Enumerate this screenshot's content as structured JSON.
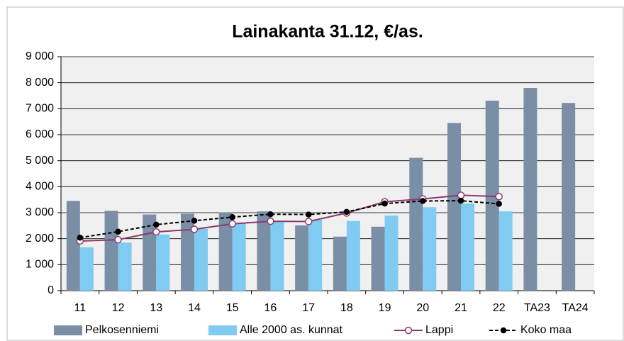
{
  "chart_data": {
    "type": "bar",
    "title": "Lainakanta 31.12, €/as.",
    "categories": [
      "11",
      "12",
      "13",
      "14",
      "15",
      "16",
      "17",
      "18",
      "19",
      "20",
      "21",
      "22",
      "TA23",
      "TA24"
    ],
    "series": [
      {
        "name": "Pelkosenniemi",
        "type": "bar",
        "color": "#7a8ea5",
        "values": [
          3450,
          3070,
          2930,
          2960,
          3010,
          3050,
          2510,
          2080,
          2460,
          5110,
          6450,
          7310,
          7800,
          7220
        ]
      },
      {
        "name": "Alle 2000 as. kunnat",
        "type": "bar",
        "color": "#80cbf2",
        "values": [
          1670,
          1850,
          2160,
          2380,
          2590,
          2650,
          2730,
          2680,
          2890,
          3210,
          3350,
          3050,
          null,
          null
        ]
      },
      {
        "name": "Lappi",
        "type": "line",
        "color": "#8b3a6e",
        "marker_fill": "#ffffff",
        "linestyle": "solid",
        "values": [
          1910,
          1960,
          2260,
          2360,
          2570,
          2670,
          2660,
          2990,
          3420,
          3530,
          3670,
          3620,
          null,
          null
        ]
      },
      {
        "name": "Koko maa",
        "type": "line",
        "color": "#000000",
        "marker_fill": "#000000",
        "linestyle": "dashed",
        "values": [
          2040,
          2270,
          2540,
          2690,
          2830,
          2940,
          2930,
          3030,
          3350,
          3450,
          3460,
          3340,
          null,
          null
        ]
      }
    ],
    "ylim": [
      0,
      9000
    ],
    "yticks": [
      0,
      {
        "value": 1000,
        "label": "1 000"
      },
      {
        "value": 2000,
        "label": "2 000"
      },
      {
        "value": 3000,
        "label": "3 000"
      },
      {
        "value": 4000,
        "label": "4 000"
      },
      {
        "value": 5000,
        "label": "5 000"
      },
      {
        "value": 6000,
        "label": "6 000"
      },
      {
        "value": 7000,
        "label": "7 000"
      },
      {
        "value": 8000,
        "label": "8 000"
      },
      {
        "value": 9000,
        "label": "9 000"
      }
    ],
    "grid": true,
    "legend": "bottom"
  }
}
